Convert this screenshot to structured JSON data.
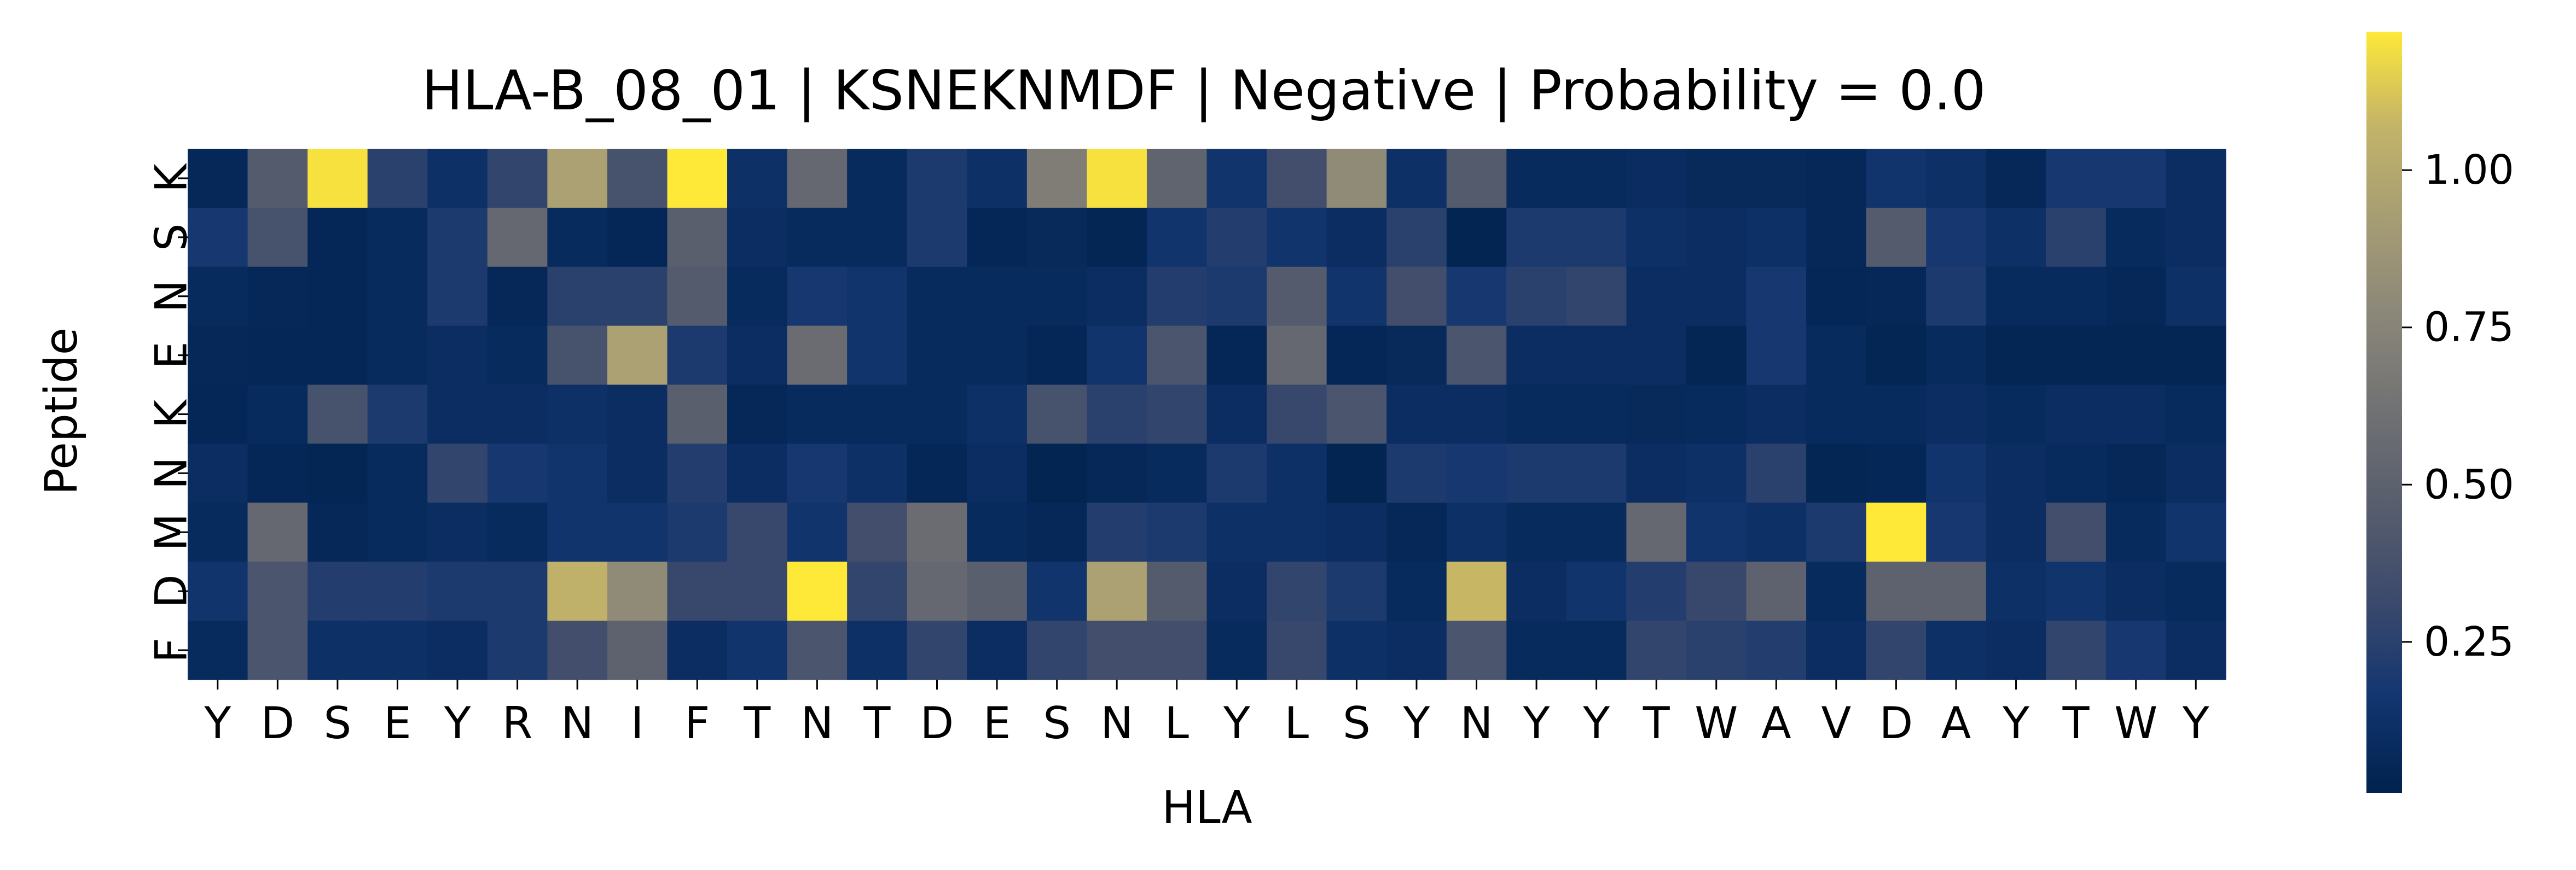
{
  "chart_data": {
    "type": "heatmap",
    "title": "HLA-B_08_01 | KSNEKNMDF | Negative | Probability = 0.0",
    "xlabel": "HLA",
    "ylabel": "Peptide",
    "x_categories": [
      "Y",
      "D",
      "S",
      "E",
      "Y",
      "R",
      "N",
      "I",
      "F",
      "T",
      "N",
      "T",
      "D",
      "E",
      "S",
      "N",
      "L",
      "Y",
      "L",
      "S",
      "Y",
      "N",
      "Y",
      "Y",
      "T",
      "W",
      "A",
      "V",
      "D",
      "A",
      "Y",
      "T",
      "W",
      "Y"
    ],
    "y_categories": [
      "K",
      "S",
      "N",
      "E",
      "K",
      "N",
      "M",
      "D",
      "F"
    ],
    "colormap": "cividis",
    "colorbar": {
      "range": [
        0.01,
        1.22
      ],
      "ticks": [
        0.25,
        0.5,
        0.75,
        1.0
      ],
      "tick_labels": [
        "0.25",
        "0.50",
        "0.75",
        "1.00"
      ]
    },
    "values": [
      [
        0.06,
        0.45,
        1.2,
        0.25,
        0.12,
        0.28,
        0.95,
        0.38,
        1.22,
        0.12,
        0.55,
        0.08,
        0.2,
        0.12,
        0.7,
        1.2,
        0.52,
        0.15,
        0.35,
        0.8,
        0.12,
        0.45,
        0.08,
        0.08,
        0.09,
        0.07,
        0.07,
        0.06,
        0.15,
        0.12,
        0.06,
        0.18,
        0.18,
        0.1
      ],
      [
        0.18,
        0.38,
        0.05,
        0.08,
        0.2,
        0.55,
        0.08,
        0.05,
        0.48,
        0.1,
        0.08,
        0.08,
        0.2,
        0.05,
        0.07,
        0.04,
        0.15,
        0.22,
        0.15,
        0.1,
        0.25,
        0.03,
        0.2,
        0.2,
        0.12,
        0.1,
        0.12,
        0.06,
        0.45,
        0.18,
        0.12,
        0.25,
        0.08,
        0.1
      ],
      [
        0.08,
        0.06,
        0.05,
        0.08,
        0.2,
        0.06,
        0.25,
        0.25,
        0.45,
        0.08,
        0.18,
        0.15,
        0.08,
        0.08,
        0.08,
        0.1,
        0.22,
        0.2,
        0.45,
        0.15,
        0.35,
        0.18,
        0.25,
        0.28,
        0.1,
        0.1,
        0.18,
        0.05,
        0.06,
        0.2,
        0.08,
        0.08,
        0.06,
        0.12
      ],
      [
        0.06,
        0.05,
        0.05,
        0.08,
        0.1,
        0.08,
        0.38,
        0.95,
        0.2,
        0.1,
        0.58,
        0.15,
        0.08,
        0.08,
        0.05,
        0.15,
        0.4,
        0.05,
        0.55,
        0.05,
        0.07,
        0.4,
        0.1,
        0.1,
        0.1,
        0.04,
        0.18,
        0.08,
        0.04,
        0.08,
        0.04,
        0.04,
        0.04,
        0.04
      ],
      [
        0.05,
        0.08,
        0.38,
        0.2,
        0.1,
        0.1,
        0.12,
        0.1,
        0.48,
        0.06,
        0.08,
        0.08,
        0.08,
        0.12,
        0.38,
        0.25,
        0.28,
        0.1,
        0.3,
        0.4,
        0.1,
        0.1,
        0.08,
        0.08,
        0.07,
        0.08,
        0.1,
        0.08,
        0.08,
        0.1,
        0.08,
        0.1,
        0.1,
        0.08
      ],
      [
        0.1,
        0.05,
        0.04,
        0.08,
        0.28,
        0.18,
        0.15,
        0.1,
        0.22,
        0.1,
        0.18,
        0.12,
        0.05,
        0.1,
        0.03,
        0.06,
        0.08,
        0.2,
        0.12,
        0.03,
        0.2,
        0.18,
        0.2,
        0.2,
        0.1,
        0.12,
        0.25,
        0.04,
        0.05,
        0.15,
        0.1,
        0.08,
        0.06,
        0.1
      ],
      [
        0.08,
        0.55,
        0.06,
        0.08,
        0.1,
        0.08,
        0.15,
        0.15,
        0.2,
        0.3,
        0.15,
        0.35,
        0.58,
        0.08,
        0.06,
        0.22,
        0.2,
        0.12,
        0.12,
        0.1,
        0.06,
        0.12,
        0.08,
        0.08,
        0.55,
        0.15,
        0.12,
        0.2,
        1.22,
        0.18,
        0.1,
        0.35,
        0.08,
        0.15
      ],
      [
        0.15,
        0.4,
        0.22,
        0.22,
        0.2,
        0.2,
        1.05,
        0.8,
        0.3,
        0.3,
        1.22,
        0.28,
        0.55,
        0.48,
        0.15,
        0.95,
        0.45,
        0.1,
        0.28,
        0.2,
        0.08,
        1.08,
        0.1,
        0.15,
        0.22,
        0.3,
        0.5,
        0.08,
        0.5,
        0.5,
        0.12,
        0.15,
        0.1,
        0.08
      ],
      [
        0.08,
        0.4,
        0.12,
        0.12,
        0.1,
        0.2,
        0.35,
        0.5,
        0.1,
        0.15,
        0.4,
        0.12,
        0.28,
        0.1,
        0.28,
        0.35,
        0.35,
        0.08,
        0.3,
        0.12,
        0.1,
        0.4,
        0.08,
        0.08,
        0.28,
        0.25,
        0.22,
        0.1,
        0.28,
        0.12,
        0.1,
        0.28,
        0.18,
        0.1
      ]
    ]
  }
}
